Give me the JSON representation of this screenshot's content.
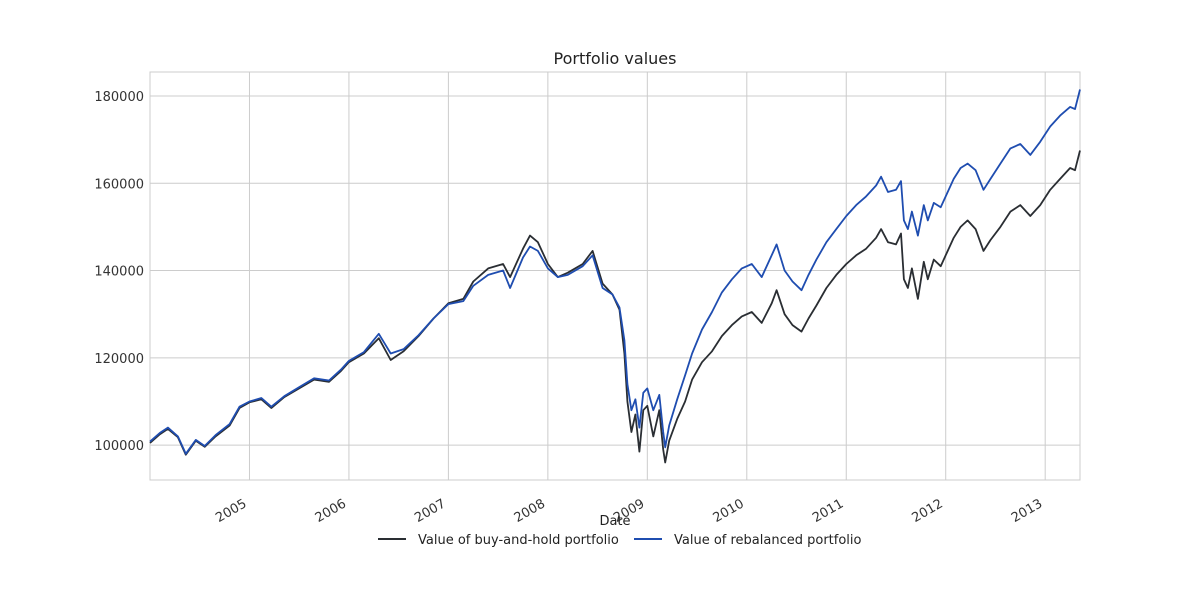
{
  "chart_data": {
    "type": "line",
    "title": "Portfolio values",
    "xlabel": "Date",
    "ylabel": "",
    "xlim": [
      2004.0,
      2013.35
    ],
    "ylim": [
      92000,
      185500
    ],
    "grid": true,
    "legend_position": "bottom-center",
    "x_ticks": [
      {
        "value": 2005,
        "label": "2005"
      },
      {
        "value": 2006,
        "label": "2006"
      },
      {
        "value": 2007,
        "label": "2007"
      },
      {
        "value": 2008,
        "label": "2008"
      },
      {
        "value": 2009,
        "label": "2009"
      },
      {
        "value": 2010,
        "label": "2010"
      },
      {
        "value": 2011,
        "label": "2011"
      },
      {
        "value": 2012,
        "label": "2012"
      },
      {
        "value": 2013,
        "label": "2013"
      }
    ],
    "y_ticks": [
      {
        "value": 100000,
        "label": "100000"
      },
      {
        "value": 120000,
        "label": "120000"
      },
      {
        "value": 140000,
        "label": "140000"
      },
      {
        "value": 160000,
        "label": "160000"
      },
      {
        "value": 180000,
        "label": "180000"
      }
    ],
    "series": [
      {
        "name": "Value of buy-and-hold portfolio",
        "color": "#2a2e33",
        "points": [
          [
            2004.0,
            100500
          ],
          [
            2004.1,
            102500
          ],
          [
            2004.18,
            103700
          ],
          [
            2004.28,
            101800
          ],
          [
            2004.36,
            97800
          ],
          [
            2004.46,
            101000
          ],
          [
            2004.55,
            99600
          ],
          [
            2004.66,
            102000
          ],
          [
            2004.8,
            104500
          ],
          [
            2004.9,
            108500
          ],
          [
            2005.0,
            109800
          ],
          [
            2005.12,
            110500
          ],
          [
            2005.22,
            108500
          ],
          [
            2005.35,
            111000
          ],
          [
            2005.5,
            113000
          ],
          [
            2005.65,
            115000
          ],
          [
            2005.8,
            114500
          ],
          [
            2005.92,
            117000
          ],
          [
            2006.0,
            119000
          ],
          [
            2006.15,
            121000
          ],
          [
            2006.3,
            124500
          ],
          [
            2006.42,
            119500
          ],
          [
            2006.55,
            121500
          ],
          [
            2006.7,
            125000
          ],
          [
            2006.85,
            129000
          ],
          [
            2007.0,
            132500
          ],
          [
            2007.15,
            133500
          ],
          [
            2007.25,
            137500
          ],
          [
            2007.4,
            140500
          ],
          [
            2007.55,
            141500
          ],
          [
            2007.62,
            138500
          ],
          [
            2007.75,
            145000
          ],
          [
            2007.82,
            148000
          ],
          [
            2007.9,
            146500
          ],
          [
            2008.0,
            141500
          ],
          [
            2008.1,
            138500
          ],
          [
            2008.2,
            139500
          ],
          [
            2008.35,
            141500
          ],
          [
            2008.45,
            144500
          ],
          [
            2008.55,
            137000
          ],
          [
            2008.65,
            134500
          ],
          [
            2008.72,
            131000
          ],
          [
            2008.77,
            121000
          ],
          [
            2008.8,
            110000
          ],
          [
            2008.84,
            103000
          ],
          [
            2008.88,
            107000
          ],
          [
            2008.92,
            98500
          ],
          [
            2008.96,
            108000
          ],
          [
            2009.0,
            109000
          ],
          [
            2009.06,
            102000
          ],
          [
            2009.12,
            108000
          ],
          [
            2009.16,
            99000
          ],
          [
            2009.18,
            96000
          ],
          [
            2009.22,
            101000
          ],
          [
            2009.3,
            106000
          ],
          [
            2009.38,
            110000
          ],
          [
            2009.45,
            115000
          ],
          [
            2009.55,
            119000
          ],
          [
            2009.65,
            121500
          ],
          [
            2009.75,
            125000
          ],
          [
            2009.85,
            127500
          ],
          [
            2009.95,
            129500
          ],
          [
            2010.05,
            130500
          ],
          [
            2010.15,
            128000
          ],
          [
            2010.25,
            132500
          ],
          [
            2010.3,
            135500
          ],
          [
            2010.38,
            130000
          ],
          [
            2010.46,
            127500
          ],
          [
            2010.55,
            126000
          ],
          [
            2010.62,
            129000
          ],
          [
            2010.7,
            132000
          ],
          [
            2010.8,
            136000
          ],
          [
            2010.9,
            139000
          ],
          [
            2011.0,
            141500
          ],
          [
            2011.1,
            143500
          ],
          [
            2011.2,
            145000
          ],
          [
            2011.3,
            147500
          ],
          [
            2011.35,
            149500
          ],
          [
            2011.42,
            146500
          ],
          [
            2011.5,
            146000
          ],
          [
            2011.55,
            148500
          ],
          [
            2011.58,
            138000
          ],
          [
            2011.62,
            136000
          ],
          [
            2011.66,
            140500
          ],
          [
            2011.72,
            133500
          ],
          [
            2011.78,
            142000
          ],
          [
            2011.82,
            138000
          ],
          [
            2011.88,
            142500
          ],
          [
            2011.95,
            141000
          ],
          [
            2012.0,
            143500
          ],
          [
            2012.08,
            147500
          ],
          [
            2012.15,
            150000
          ],
          [
            2012.22,
            151500
          ],
          [
            2012.3,
            149500
          ],
          [
            2012.38,
            144500
          ],
          [
            2012.45,
            147000
          ],
          [
            2012.55,
            150000
          ],
          [
            2012.65,
            153500
          ],
          [
            2012.75,
            155000
          ],
          [
            2012.85,
            152500
          ],
          [
            2012.95,
            155000
          ],
          [
            2013.05,
            158500
          ],
          [
            2013.15,
            161000
          ],
          [
            2013.25,
            163500
          ],
          [
            2013.3,
            163000
          ],
          [
            2013.35,
            167500
          ]
        ]
      },
      {
        "name": "Value of rebalanced portfolio",
        "color": "#1f4db0",
        "points": [
          [
            2004.0,
            100800
          ],
          [
            2004.1,
            102800
          ],
          [
            2004.18,
            104000
          ],
          [
            2004.28,
            102000
          ],
          [
            2004.36,
            98000
          ],
          [
            2004.46,
            101200
          ],
          [
            2004.55,
            99800
          ],
          [
            2004.66,
            102300
          ],
          [
            2004.8,
            104800
          ],
          [
            2004.9,
            108800
          ],
          [
            2005.0,
            110000
          ],
          [
            2005.12,
            110800
          ],
          [
            2005.22,
            108800
          ],
          [
            2005.35,
            111200
          ],
          [
            2005.5,
            113300
          ],
          [
            2005.65,
            115300
          ],
          [
            2005.8,
            114800
          ],
          [
            2005.92,
            117300
          ],
          [
            2006.0,
            119300
          ],
          [
            2006.15,
            121300
          ],
          [
            2006.3,
            125500
          ],
          [
            2006.42,
            121000
          ],
          [
            2006.55,
            122000
          ],
          [
            2006.7,
            125200
          ],
          [
            2006.85,
            129000
          ],
          [
            2007.0,
            132300
          ],
          [
            2007.15,
            133000
          ],
          [
            2007.25,
            136500
          ],
          [
            2007.4,
            139000
          ],
          [
            2007.55,
            140000
          ],
          [
            2007.62,
            136000
          ],
          [
            2007.75,
            143000
          ],
          [
            2007.82,
            145500
          ],
          [
            2007.9,
            144500
          ],
          [
            2008.0,
            140500
          ],
          [
            2008.1,
            138500
          ],
          [
            2008.2,
            139000
          ],
          [
            2008.35,
            141000
          ],
          [
            2008.45,
            143500
          ],
          [
            2008.55,
            136000
          ],
          [
            2008.65,
            134500
          ],
          [
            2008.72,
            131500
          ],
          [
            2008.77,
            124000
          ],
          [
            2008.8,
            114000
          ],
          [
            2008.84,
            108000
          ],
          [
            2008.88,
            110500
          ],
          [
            2008.92,
            104000
          ],
          [
            2008.96,
            112000
          ],
          [
            2009.0,
            113000
          ],
          [
            2009.06,
            108000
          ],
          [
            2009.12,
            111500
          ],
          [
            2009.16,
            103000
          ],
          [
            2009.18,
            99500
          ],
          [
            2009.22,
            104500
          ],
          [
            2009.3,
            110500
          ],
          [
            2009.38,
            116000
          ],
          [
            2009.45,
            121000
          ],
          [
            2009.55,
            126500
          ],
          [
            2009.65,
            130500
          ],
          [
            2009.75,
            135000
          ],
          [
            2009.85,
            138000
          ],
          [
            2009.95,
            140500
          ],
          [
            2010.05,
            141500
          ],
          [
            2010.15,
            138500
          ],
          [
            2010.25,
            143500
          ],
          [
            2010.3,
            146000
          ],
          [
            2010.38,
            140000
          ],
          [
            2010.46,
            137500
          ],
          [
            2010.55,
            135500
          ],
          [
            2010.62,
            139000
          ],
          [
            2010.7,
            142500
          ],
          [
            2010.8,
            146500
          ],
          [
            2010.9,
            149500
          ],
          [
            2011.0,
            152500
          ],
          [
            2011.1,
            155000
          ],
          [
            2011.2,
            157000
          ],
          [
            2011.3,
            159500
          ],
          [
            2011.35,
            161500
          ],
          [
            2011.42,
            158000
          ],
          [
            2011.5,
            158500
          ],
          [
            2011.55,
            160500
          ],
          [
            2011.58,
            151500
          ],
          [
            2011.62,
            149500
          ],
          [
            2011.66,
            153500
          ],
          [
            2011.72,
            148000
          ],
          [
            2011.78,
            155000
          ],
          [
            2011.82,
            151500
          ],
          [
            2011.88,
            155500
          ],
          [
            2011.95,
            154500
          ],
          [
            2012.0,
            157000
          ],
          [
            2012.08,
            161000
          ],
          [
            2012.15,
            163500
          ],
          [
            2012.22,
            164500
          ],
          [
            2012.3,
            163000
          ],
          [
            2012.38,
            158500
          ],
          [
            2012.45,
            161000
          ],
          [
            2012.55,
            164500
          ],
          [
            2012.65,
            168000
          ],
          [
            2012.75,
            169000
          ],
          [
            2012.85,
            166500
          ],
          [
            2012.95,
            169500
          ],
          [
            2013.05,
            173000
          ],
          [
            2013.15,
            175500
          ],
          [
            2013.25,
            177500
          ],
          [
            2013.3,
            177000
          ],
          [
            2013.35,
            181500
          ]
        ]
      }
    ]
  }
}
